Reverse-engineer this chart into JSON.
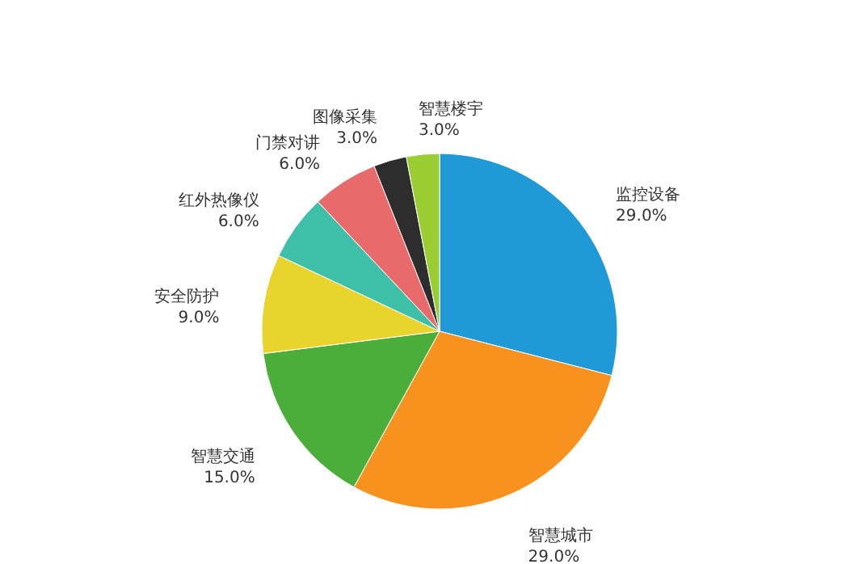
{
  "chart_data": {
    "type": "pie",
    "categories": [
      "监控设备",
      "智慧城市",
      "智慧交通",
      "安全防护",
      "红外热像仪",
      "门禁对讲",
      "图像采集",
      "智慧楼宇"
    ],
    "values": [
      29,
      29,
      15,
      9,
      6,
      6,
      3,
      3
    ],
    "colors": [
      "#1f9ad6",
      "#f7921e",
      "#4cae3a",
      "#e8d42c",
      "#3dbfa8",
      "#e96a6a",
      "#2d2d2d",
      "#9acd32"
    ],
    "value_labels": [
      "29.0%",
      "29.0%",
      "15.0%",
      "9.0%",
      "6.0%",
      "6.0%",
      "3.0%",
      "3.0%"
    ]
  }
}
